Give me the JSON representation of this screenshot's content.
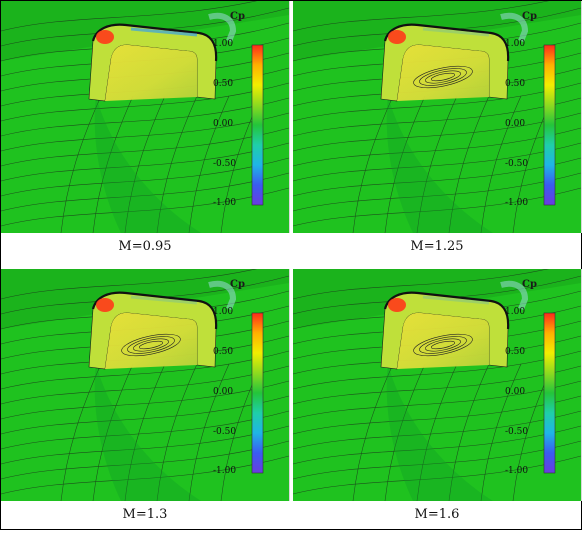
{
  "legend": {
    "title": "Cp",
    "ticks": [
      "1.00",
      "0.50",
      "0.00",
      "-0.50",
      "-1.00"
    ],
    "colors": [
      "#ff2a1a",
      "#ffb000",
      "#f2ee00",
      "#8edb1f",
      "#23c53a",
      "#1fcfa8",
      "#1fb5e6",
      "#3a5cf0",
      "#6a3ce0"
    ]
  },
  "colors": {
    "ground": "#1fc21f",
    "ground_dark": "#17a81a",
    "inlet": "#d9dd3a",
    "lip_red": "#ff3a1a",
    "lip_blue": "#3aa2e6",
    "streamline": "#1b2a1b"
  },
  "panels": [
    {
      "caption": "M=0.95"
    },
    {
      "caption": "M=1.25"
    },
    {
      "caption": "M=1.3"
    },
    {
      "caption": "M=1.6"
    }
  ]
}
